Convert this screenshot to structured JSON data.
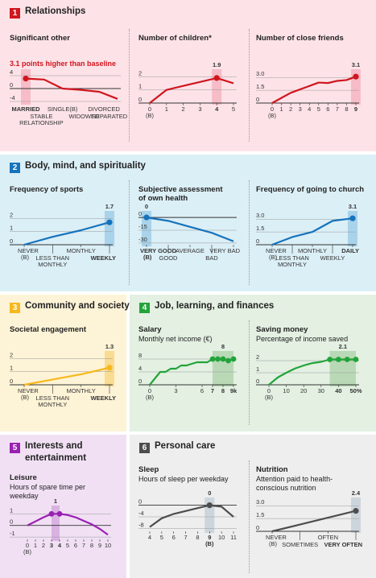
{
  "colors": {
    "red": "#d0161e",
    "red_bg": "#fde3e8",
    "red_hl": "#f6bcc7",
    "blue": "#1673bd",
    "blue_bg": "#dbeff6",
    "blue_hl": "#a9d3ea",
    "yellow": "#f8b81c",
    "yellow_bg": "#fdf3d6",
    "yellow_hl": "#f9dc91",
    "green": "#22a43a",
    "green_bg": "#e3f0e2",
    "green_hl": "#b9d9b6",
    "purple": "#9a1fb3",
    "purple_bg": "#f1e0f4",
    "purple_hl": "#d9b2e2",
    "gray": "#4d4d4d",
    "gray_bg": "#eeeeee",
    "gray_hl": "#cdd5dc"
  },
  "sections": [
    {
      "num": "1",
      "title": "Relationships"
    },
    {
      "num": "2",
      "title": "Body, mind, and spirituality"
    },
    {
      "num": "3",
      "title": "Community and society"
    },
    {
      "num": "4",
      "title": "Job, learning, and finances"
    },
    {
      "num": "5",
      "title_lines": [
        "Interests and",
        "entertainment"
      ]
    },
    {
      "num": "6",
      "title": "Personal care"
    }
  ],
  "chart_data": [
    {
      "type": "line",
      "id": "significant-other",
      "title": "Significant other",
      "annotation": "3.1 points higher than baseline",
      "categories": [
        "MARRIED",
        "STABLE RELATIONSHIP",
        "SINGLE(B)",
        "WIDOWED",
        "DIVORCED",
        "SEPARATED"
      ],
      "values": [
        3.1,
        2.8,
        0,
        -0.4,
        -1.0,
        -3.2
      ],
      "highlight_index": 0,
      "yticks": [
        4,
        0,
        -4
      ],
      "ylim": [
        -4.5,
        4.5
      ]
    },
    {
      "type": "line",
      "id": "number-of-children",
      "title": "Number of children*",
      "x": [
        0,
        1,
        2,
        3,
        4,
        5
      ],
      "values": [
        0,
        1.0,
        1.3,
        1.6,
        1.9,
        1.5
      ],
      "highlight_index": 4,
      "highlight_label": "1.9",
      "xticks": [
        "0",
        "1",
        "2",
        "3",
        "4",
        "5"
      ],
      "baseline_label": "(B)",
      "yticks": [
        2,
        1,
        0
      ],
      "ylim": [
        0,
        2.2
      ]
    },
    {
      "type": "line",
      "id": "close-friends",
      "title": "Number of close friends",
      "x": [
        0,
        1,
        2,
        3,
        4,
        5,
        6,
        7,
        8,
        9
      ],
      "values": [
        0,
        0.6,
        1.2,
        1.6,
        2.0,
        2.4,
        2.35,
        2.6,
        2.7,
        3.1
      ],
      "highlight_index": 9,
      "highlight_label": "3.1",
      "xticks": [
        "0",
        "1",
        "2",
        "3",
        "4",
        "5",
        "6",
        "7",
        "8",
        "9"
      ],
      "baseline_label": "(B)",
      "yticks": [
        "3.0",
        "1.5",
        "0"
      ],
      "ylim": [
        0,
        3.4
      ]
    },
    {
      "type": "line",
      "id": "sports",
      "title": "Frequency of sports",
      "x_labels": [
        {
          "text": "NEVER",
          "sub": "(B)"
        },
        {
          "text": "LESS THAN MONTHLY"
        },
        {
          "text": "MONTHLY"
        },
        {
          "text": "WEEKLY"
        }
      ],
      "values": [
        0,
        0.6,
        1.1,
        1.7
      ],
      "highlight_index": 3,
      "highlight_label": "1.7",
      "yticks": [
        2,
        1,
        0
      ],
      "ylim": [
        0,
        2.2
      ]
    },
    {
      "type": "line",
      "id": "health",
      "title": "Subjective assessment of own health",
      "x_labels": [
        {
          "text": "VERY GOOD",
          "sub": "(B)"
        },
        {
          "text": "GOOD"
        },
        {
          "text": "AVERAGE"
        },
        {
          "text": "BAD"
        },
        {
          "text": "VERY BAD"
        }
      ],
      "values": [
        0,
        -4,
        -11,
        -18,
        -28
      ],
      "highlight_index": 0,
      "highlight_label": "0",
      "yticks": [
        0,
        -15,
        -30
      ],
      "ylim": [
        -32,
        2
      ]
    },
    {
      "type": "line",
      "id": "church",
      "title": "Frequency of going to church",
      "x_labels": [
        {
          "text": "NEVER",
          "sub": "(B)"
        },
        {
          "text": "LESS THAN MONTHLY"
        },
        {
          "text": "MONTHLY"
        },
        {
          "text": "WEEKLY"
        },
        {
          "text": "DAILY"
        }
      ],
      "values": [
        0,
        0.9,
        1.5,
        2.8,
        3.1
      ],
      "highlight_index": 4,
      "highlight_label": "3.1",
      "yticks": [
        "3.0",
        "1.5",
        "0"
      ],
      "ylim": [
        0,
        3.4
      ]
    },
    {
      "type": "line",
      "id": "societal",
      "title": "Societal engagement",
      "x_labels": [
        {
          "text": "NEVER",
          "sub": "(B)"
        },
        {
          "text": "LESS THAN MONTHLY"
        },
        {
          "text": "MONTHLY"
        },
        {
          "text": "WEEKLY"
        }
      ],
      "values": [
        0,
        0.4,
        0.8,
        1.3
      ],
      "highlight_index": 3,
      "highlight_label": "1.3",
      "yticks": [
        2,
        1,
        0
      ],
      "ylim": [
        0,
        2.2
      ]
    },
    {
      "type": "line",
      "id": "salary",
      "title": "Salary",
      "subtitle": "Monthly net income (€)",
      "x": [
        0,
        1,
        2,
        3,
        4,
        5,
        6,
        7,
        8,
        9,
        10,
        11,
        12,
        13,
        14,
        15,
        16
      ],
      "values": [
        0,
        2,
        4,
        4,
        5,
        5,
        6,
        6,
        6.5,
        7,
        7,
        7,
        8,
        8,
        8,
        7.5,
        8
      ],
      "highlight_index": 14,
      "highlight_label": "8",
      "xticks": [
        {
          "text": "0",
          "pos": 0
        },
        {
          "text": "3",
          "pos": 5
        },
        {
          "text": "6",
          "pos": 10
        },
        {
          "text": "7",
          "pos": 12
        },
        {
          "text": "8",
          "pos": 14
        },
        {
          "text": "9k",
          "pos": 16
        }
      ],
      "highlight_range": [
        12,
        16
      ],
      "green_ticks": [
        "7",
        "8",
        "9k"
      ],
      "baseline_label": "(B)",
      "yticks": [
        8,
        4,
        0
      ],
      "ylim": [
        0,
        9
      ]
    },
    {
      "type": "line",
      "id": "saving",
      "title": "Saving money",
      "subtitle": "Percentage of income saved",
      "x": [
        0,
        5,
        10,
        15,
        20,
        25,
        30,
        35,
        40,
        45,
        50
      ],
      "values": [
        0,
        0.6,
        1.0,
        1.35,
        1.6,
        1.8,
        1.9,
        2.1,
        2.1,
        2.1,
        2.1
      ],
      "highlight_index": 7,
      "highlight_label": "2.1",
      "xticks": [
        {
          "text": "0",
          "pos": 0
        },
        {
          "text": "10",
          "pos": 10
        },
        {
          "text": "20",
          "pos": 20
        },
        {
          "text": "30",
          "pos": 30
        },
        {
          "text": "40",
          "pos": 40
        },
        {
          "text": "50%",
          "pos": 50
        }
      ],
      "highlight_range": [
        35,
        50
      ],
      "green_ticks": [
        "40",
        "50%"
      ],
      "baseline_label": "(B)",
      "yticks": [
        2,
        1,
        0
      ],
      "ylim": [
        0,
        2.4
      ]
    },
    {
      "type": "line",
      "id": "leisure",
      "title": "Leisure",
      "subtitle": "Hours of spare time per weekday",
      "x": [
        0,
        1,
        2,
        3,
        4,
        5,
        6,
        7,
        8,
        9,
        10
      ],
      "values": [
        0,
        0.35,
        0.7,
        1.0,
        1.0,
        0.9,
        0.7,
        0.4,
        0.1,
        -0.3,
        -0.8
      ],
      "highlight_index": 3,
      "highlight_label": "1",
      "xticks": [
        "0",
        "1",
        "2",
        "3",
        "4",
        "5",
        "6",
        "7",
        "8",
        "9",
        "10"
      ],
      "highlight_range": [
        3,
        4
      ],
      "purple_ticks": [
        "3",
        "4"
      ],
      "baseline_label": "(B)",
      "yticks": [
        1,
        0,
        -1
      ],
      "ylim": [
        -1.2,
        1.3
      ]
    },
    {
      "type": "line",
      "id": "sleep",
      "title": "Sleep",
      "subtitle": "Hours of sleep per weekday",
      "x": [
        4,
        5,
        6,
        7,
        8,
        9,
        10,
        11
      ],
      "values": [
        -7.5,
        -4.5,
        -3,
        -2,
        -1,
        0,
        -0.5,
        -4
      ],
      "highlight_index": 5,
      "highlight_label": "0",
      "xticks": [
        "4",
        "5",
        "6",
        "7",
        "8",
        "9",
        "10",
        "11"
      ],
      "baseline_label": "(B)",
      "baseline_tick": "9",
      "yticks": [
        0,
        -4,
        -8
      ],
      "ylim": [
        -9,
        1
      ]
    },
    {
      "type": "line",
      "id": "nutrition",
      "title": "Nutrition",
      "subtitle": "Attention paid to health-conscious nutrition",
      "x_labels": [
        {
          "text": "NEVER",
          "sub": "(B)"
        },
        {
          "text": "SOMETIMES"
        },
        {
          "text": "OFTEN"
        },
        {
          "text": "VERY OFTEN"
        }
      ],
      "values": [
        0,
        0.8,
        1.6,
        2.4
      ],
      "highlight_index": 3,
      "highlight_label": "2.4",
      "yticks": [
        "3.0",
        "1.5",
        "0"
      ],
      "ylim": [
        0,
        3.4
      ]
    }
  ]
}
